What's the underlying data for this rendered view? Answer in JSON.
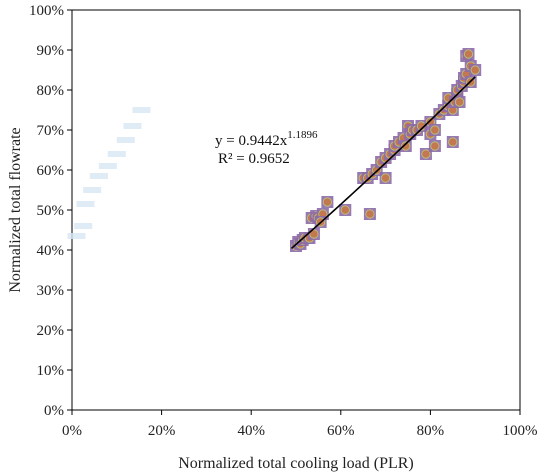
{
  "chart_data": {
    "type": "scatter",
    "title": "",
    "xlabel": "Normalized total cooling load (PLR)",
    "ylabel": "Normalized total flowrate",
    "xlim": [
      0,
      1
    ],
    "ylim": [
      0,
      1
    ],
    "x_ticks": [
      "0%",
      "20%",
      "40%",
      "60%",
      "80%",
      "100%"
    ],
    "y_ticks": [
      "0%",
      "10%",
      "20%",
      "30%",
      "40%",
      "50%",
      "60%",
      "70%",
      "80%",
      "90%",
      "100%"
    ],
    "grid": false,
    "legend": "none",
    "marker_color": "#c4784f",
    "marker_border_color": "#8e6aa8",
    "fit_line_color": "#000000",
    "equation": {
      "prefix": "y = 0.9442x",
      "exponent": "1.1896",
      "r_squared": "R² = 0.9652"
    },
    "fit": {
      "coefficient": 0.9442,
      "exponent": 1.1896,
      "x_range": [
        0.49,
        0.9
      ]
    },
    "series": [
      {
        "points": [
          [
            0.5,
            0.41
          ],
          [
            0.505,
            0.42
          ],
          [
            0.51,
            0.415
          ],
          [
            0.515,
            0.425
          ],
          [
            0.52,
            0.43
          ],
          [
            0.53,
            0.43
          ],
          [
            0.54,
            0.44
          ],
          [
            0.535,
            0.48
          ],
          [
            0.545,
            0.485
          ],
          [
            0.55,
            0.48
          ],
          [
            0.56,
            0.49
          ],
          [
            0.57,
            0.52
          ],
          [
            0.555,
            0.47
          ],
          [
            0.61,
            0.5
          ],
          [
            0.665,
            0.49
          ],
          [
            0.65,
            0.58
          ],
          [
            0.66,
            0.58
          ],
          [
            0.67,
            0.59
          ],
          [
            0.68,
            0.6
          ],
          [
            0.69,
            0.62
          ],
          [
            0.7,
            0.63
          ],
          [
            0.7,
            0.58
          ],
          [
            0.71,
            0.64
          ],
          [
            0.72,
            0.65
          ],
          [
            0.72,
            0.66
          ],
          [
            0.73,
            0.67
          ],
          [
            0.74,
            0.68
          ],
          [
            0.745,
            0.66
          ],
          [
            0.75,
            0.71
          ],
          [
            0.755,
            0.69
          ],
          [
            0.76,
            0.7
          ],
          [
            0.77,
            0.7
          ],
          [
            0.78,
            0.71
          ],
          [
            0.79,
            0.64
          ],
          [
            0.8,
            0.72
          ],
          [
            0.8,
            0.69
          ],
          [
            0.81,
            0.7
          ],
          [
            0.81,
            0.66
          ],
          [
            0.82,
            0.74
          ],
          [
            0.83,
            0.75
          ],
          [
            0.84,
            0.76
          ],
          [
            0.84,
            0.78
          ],
          [
            0.85,
            0.75
          ],
          [
            0.85,
            0.67
          ],
          [
            0.855,
            0.77
          ],
          [
            0.86,
            0.79
          ],
          [
            0.86,
            0.8
          ],
          [
            0.865,
            0.77
          ],
          [
            0.87,
            0.81
          ],
          [
            0.875,
            0.82
          ],
          [
            0.875,
            0.83
          ],
          [
            0.88,
            0.84
          ],
          [
            0.88,
            0.885
          ],
          [
            0.885,
            0.89
          ],
          [
            0.89,
            0.86
          ],
          [
            0.89,
            0.82
          ],
          [
            0.9,
            0.85
          ]
        ]
      }
    ],
    "ghost_points": [
      [
        0.01,
        0.435
      ],
      [
        0.025,
        0.46
      ],
      [
        0.03,
        0.515
      ],
      [
        0.045,
        0.55
      ],
      [
        0.06,
        0.585
      ],
      [
        0.08,
        0.61
      ],
      [
        0.1,
        0.64
      ],
      [
        0.12,
        0.675
      ],
      [
        0.135,
        0.71
      ],
      [
        0.155,
        0.75
      ]
    ]
  }
}
